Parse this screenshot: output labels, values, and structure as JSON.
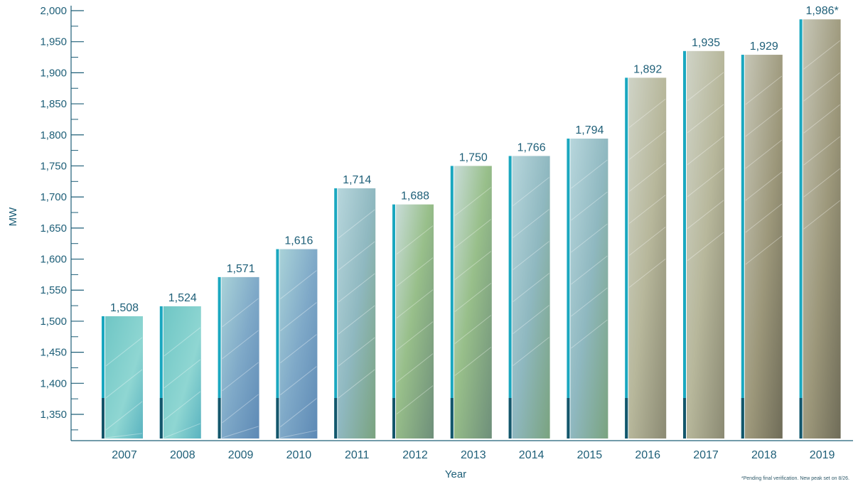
{
  "chart_data": {
    "type": "bar",
    "title": "",
    "xlabel": "Year",
    "ylabel": "MW",
    "categories": [
      "2007",
      "2008",
      "2009",
      "2010",
      "2011",
      "2012",
      "2013",
      "2014",
      "2015",
      "2016",
      "2017",
      "2018",
      "2019"
    ],
    "values": [
      1508,
      1524,
      1571,
      1616,
      1714,
      1688,
      1750,
      1766,
      1794,
      1892,
      1935,
      1929,
      1986
    ],
    "data_labels": [
      "1,508",
      "1,524",
      "1,571",
      "1,616",
      "1,714",
      "1,688",
      "1,750",
      "1,766",
      "1,794",
      "1,892",
      "1,935",
      "1,929",
      "1,986*"
    ],
    "ylim": [
      1300,
      2000
    ],
    "yticks": [
      1350,
      1400,
      1450,
      1500,
      1550,
      1600,
      1650,
      1700,
      1750,
      1800,
      1850,
      1900,
      1950,
      2000
    ],
    "ytick_labels": [
      "1,350",
      "1,400",
      "1,450",
      "1,500",
      "1,550",
      "1,600",
      "1,650",
      "1,700",
      "1,750",
      "1,800",
      "1,850",
      "1,900",
      "1,950",
      "2,000"
    ],
    "grid": false,
    "legend": "none",
    "footnote": "*Pending final verification. New peak set on 8/26."
  },
  "colors": {
    "axis": "#1e5f78",
    "text": "#1e5f78",
    "accent_bar": "#1aa7bf"
  }
}
